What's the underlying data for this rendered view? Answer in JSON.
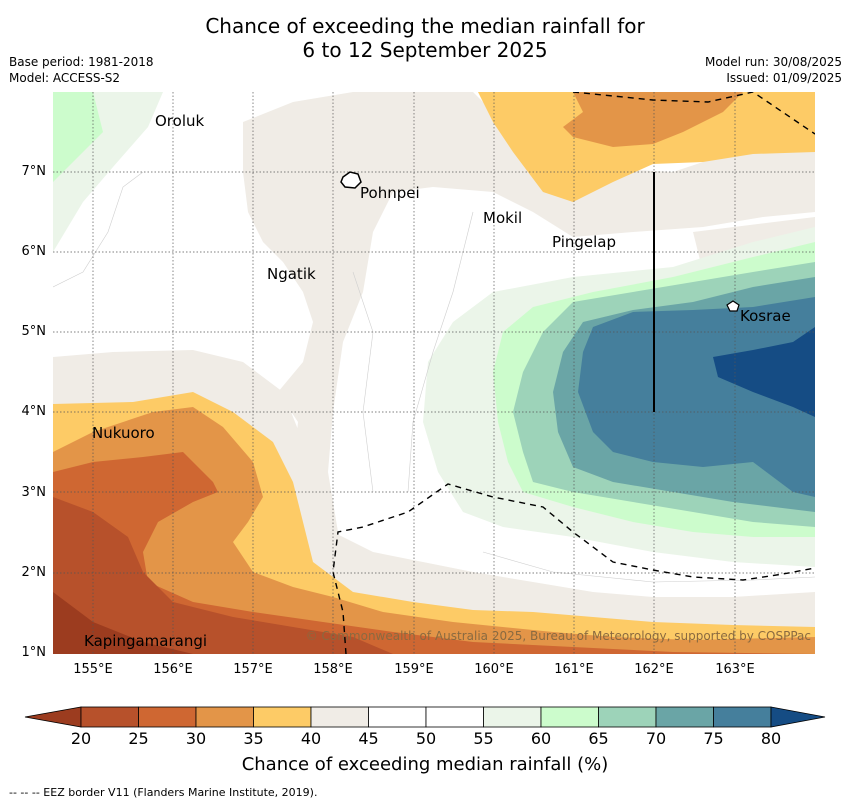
{
  "title_line1": "Chance of exceeding the median rainfall for",
  "title_line2": "6 to 12 September 2025",
  "base_period": "Base period: 1981-2018",
  "model": "Model: ACCESS-S2",
  "model_run": "Model run: 30/08/2025",
  "issued": "Issued: 01/09/2025",
  "copyright": "© Commonwealth of Australia 2025, Bureau of Meteorology, supported by COSPPac",
  "places": [
    "Oroluk",
    "Pohnpei",
    "Mokil",
    "Pingelap",
    "Ngatik",
    "Kosrae",
    "Nukuoro",
    "Kapingamarangi"
  ],
  "lat_labels": [
    "7°N",
    "6°N",
    "5°N",
    "4°N",
    "3°N",
    "2°N",
    "1°N"
  ],
  "lon_labels": [
    "155°E",
    "156°E",
    "157°E",
    "158°E",
    "159°E",
    "160°E",
    "161°E",
    "162°E",
    "163°E"
  ],
  "colorbar": {
    "ticks": [
      "20",
      "25",
      "30",
      "35",
      "40",
      "45",
      "50",
      "55",
      "60",
      "65",
      "70",
      "75",
      "80"
    ],
    "colors": {
      "lt20": "#9c3c1f",
      "20": "#b7512b",
      "25": "#cf6732",
      "30": "#e39548",
      "35": "#fdcb66",
      "40": "#f0ece6",
      "45": "#ffffff",
      "50": "#ffffff",
      "55": "#ebf5e9",
      "60": "#ccfccc",
      "65": "#9dd3b9",
      "70": "#6aa5a6",
      "75": "#457f9c",
      "gt80": "#154c84"
    },
    "label": "Chance of exceeding median rainfall (%)"
  },
  "footnote": "-- -- -- EEZ border V11 (Flanders Marine Institute, 2019)."
}
